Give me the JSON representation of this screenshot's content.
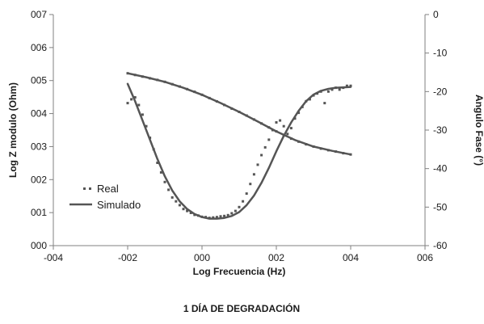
{
  "chart_data": {
    "type": "scatter",
    "caption": "1 DÍA DE DEGRADACIÓN",
    "xlabel": "Log Frecuencia (Hz)",
    "ylabel_left": "Log Z modulo (Ohm)",
    "ylabel_right": "Angulo Fase (°)",
    "xlim": [
      -4,
      6
    ],
    "ylim_left": [
      0,
      7
    ],
    "ylim_right": [
      -60,
      0
    ],
    "x_ticks": [
      -4,
      -2,
      0,
      2,
      4,
      6
    ],
    "x_tick_labels": [
      "-004",
      "-002",
      "000",
      "002",
      "004",
      "006"
    ],
    "y_left_ticks": [
      0,
      1,
      2,
      3,
      4,
      5,
      6,
      7
    ],
    "y_left_tick_labels": [
      "000",
      "001",
      "002",
      "003",
      "004",
      "005",
      "006",
      "007"
    ],
    "y_right_ticks": [
      0,
      -10,
      -20,
      -30,
      -40,
      -50,
      -60
    ],
    "y_right_tick_labels": [
      "0",
      "-10",
      "-20",
      "-30",
      "-40",
      "-50",
      "-60"
    ],
    "legend": {
      "position": "left",
      "entries": [
        {
          "label": "Real",
          "style": "dots"
        },
        {
          "label": "Simulado",
          "style": "line"
        }
      ]
    },
    "series": [
      {
        "name": "Real",
        "kind": "modulus",
        "axis": "left",
        "style": "dots",
        "color": "#555555",
        "x": [
          -2.0,
          -1.8,
          -1.6,
          -1.4,
          -1.2,
          -1.0,
          -0.8,
          -0.6,
          -0.4,
          -0.2,
          0.0,
          0.2,
          0.4,
          0.6,
          0.8,
          1.0,
          1.2,
          1.4,
          1.6,
          1.8,
          2.0,
          2.2,
          2.4,
          2.6,
          2.8,
          3.0,
          3.2,
          3.4,
          3.6,
          3.8,
          4.0
        ],
        "y": [
          5.22,
          5.17,
          5.12,
          5.07,
          5.02,
          4.96,
          4.89,
          4.82,
          4.74,
          4.66,
          4.57,
          4.47,
          4.37,
          4.26,
          4.15,
          4.05,
          3.94,
          3.82,
          3.7,
          3.58,
          3.46,
          3.34,
          3.24,
          3.15,
          3.07,
          3.0,
          2.94,
          2.89,
          2.85,
          2.8,
          2.76
        ]
      },
      {
        "name": "Real",
        "kind": "phase",
        "axis": "right",
        "style": "dots",
        "color": "#555555",
        "x": [
          -2.0,
          -1.9,
          -1.8,
          -1.7,
          -1.6,
          -1.5,
          -1.4,
          -1.3,
          -1.2,
          -1.1,
          -1.0,
          -0.9,
          -0.8,
          -0.7,
          -0.6,
          -0.5,
          -0.4,
          -0.3,
          -0.2,
          -0.1,
          0.0,
          0.1,
          0.2,
          0.3,
          0.4,
          0.5,
          0.6,
          0.7,
          0.8,
          0.9,
          1.0,
          1.1,
          1.2,
          1.3,
          1.4,
          1.5,
          1.6,
          1.7,
          1.8,
          1.9,
          2.0,
          2.1,
          2.2,
          2.3,
          2.4,
          2.5,
          2.6,
          2.7,
          2.8,
          2.9,
          3.0,
          3.1,
          3.2,
          3.3,
          3.4,
          3.5,
          3.6,
          3.7,
          3.8,
          3.9,
          4.0
        ],
        "y": [
          -23.0,
          -22.0,
          -21.5,
          -23.5,
          -26.0,
          -29.0,
          -32.0,
          -35.0,
          -38.5,
          -41.0,
          -43.5,
          -45.5,
          -47.5,
          -48.5,
          -49.5,
          -50.5,
          -51.0,
          -51.5,
          -52.0,
          -52.2,
          -52.5,
          -52.6,
          -52.8,
          -52.7,
          -52.6,
          -52.4,
          -52.3,
          -52.1,
          -51.6,
          -51.0,
          -50.0,
          -48.5,
          -46.5,
          -44.0,
          -41.5,
          -39.0,
          -36.5,
          -34.5,
          -32.5,
          -30.0,
          -28.0,
          -27.5,
          -29.0,
          -31.0,
          -29.5,
          -27.0,
          -25.5,
          -24.0,
          -22.5,
          -22.0,
          -21.0,
          -20.5,
          -20.0,
          -23.0,
          -20.0,
          -19.5,
          -19.0,
          -19.5,
          -19.0,
          -18.5,
          -18.5
        ]
      },
      {
        "name": "Simulado",
        "kind": "modulus",
        "axis": "left",
        "style": "line",
        "color": "#555555",
        "x": [
          -2.0,
          -1.5,
          -1.0,
          -0.5,
          0.0,
          0.5,
          1.0,
          1.5,
          2.0,
          2.5,
          3.0,
          3.5,
          4.0
        ],
        "y": [
          5.22,
          5.1,
          4.96,
          4.78,
          4.57,
          4.32,
          4.05,
          3.76,
          3.46,
          3.2,
          3.0,
          2.87,
          2.76
        ]
      },
      {
        "name": "Simulado",
        "kind": "phase",
        "axis": "right",
        "style": "line",
        "color": "#555555",
        "x": [
          -2.0,
          -1.8,
          -1.6,
          -1.4,
          -1.2,
          -1.0,
          -0.8,
          -0.6,
          -0.4,
          -0.2,
          0.0,
          0.2,
          0.4,
          0.6,
          0.8,
          1.0,
          1.2,
          1.4,
          1.6,
          1.8,
          2.0,
          2.2,
          2.4,
          2.6,
          2.8,
          3.0,
          3.2,
          3.4,
          3.6,
          3.8,
          4.0
        ],
        "y": [
          -18.0,
          -22.5,
          -27.5,
          -32.5,
          -37.5,
          -42.0,
          -45.7,
          -48.5,
          -50.5,
          -51.8,
          -52.6,
          -53.0,
          -53.0,
          -52.8,
          -52.3,
          -51.3,
          -49.5,
          -47.0,
          -43.7,
          -39.8,
          -35.5,
          -31.5,
          -28.0,
          -25.0,
          -22.5,
          -20.8,
          -19.8,
          -19.3,
          -19.0,
          -18.9,
          -18.8
        ]
      }
    ]
  }
}
